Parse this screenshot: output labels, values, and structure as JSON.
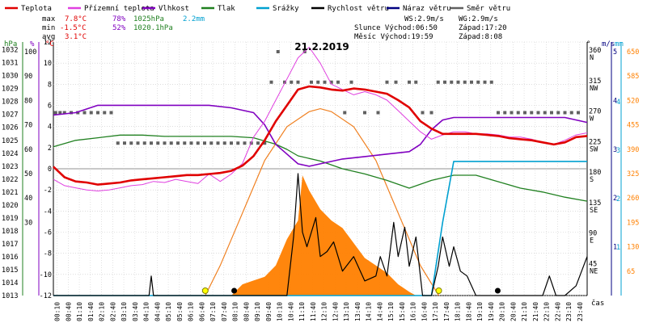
{
  "legend": [
    {
      "label": "Teplota",
      "color": "#e00000"
    },
    {
      "label": "Přízemní teplota",
      "color": "#e040e0"
    },
    {
      "label": "Vlhkost",
      "color": "#8000c0"
    },
    {
      "label": "Tlak",
      "color": "#208020"
    },
    {
      "label": "Srážky",
      "color": "#00a0d0"
    },
    {
      "label": "Rychlost větru",
      "color": "#000000"
    },
    {
      "label": "Náraz větru",
      "color": "#000080"
    },
    {
      "label": "Směr větru",
      "color": "#606060"
    }
  ],
  "stats": {
    "max_label": "max",
    "max_temp": "7.8°C",
    "max_hum": "78%",
    "max_press": "1025hPa",
    "rain": "2.2mm",
    "min_label": "min",
    "min_temp": "-1.5°C",
    "min_hum": "52%",
    "min_press": "1020.1hPa",
    "avg_label": "avg",
    "avg_temp": "3.1°C"
  },
  "wind_info": {
    "ws": "WS:2.9m/s",
    "wg": "WG:2.9m/s"
  },
  "sun_info": {
    "sunrise": "Slunce Východ:06:50",
    "sunset": "Západ:17:20"
  },
  "moon_info": {
    "rise": "Měsíc Východ:19:59",
    "set": "Západ:8:08"
  },
  "colors": {
    "temp": "#e00000",
    "ground": "#e040e0",
    "hum": "#8000c0",
    "press": "#208020",
    "rain": "#00a0d0",
    "wind": "#000000",
    "gust": "#000080",
    "dir": "#606060",
    "solar": "#ff8000",
    "sun_curve": "#f08020"
  },
  "chart_data": {
    "type": "line",
    "title": "21.2.2019",
    "xlabel": "čas",
    "x_ticks": [
      "00:10",
      "00:40",
      "01:10",
      "01:40",
      "02:10",
      "02:40",
      "03:10",
      "03:40",
      "04:10",
      "04:40",
      "05:10",
      "05:40",
      "06:10",
      "06:40",
      "07:10",
      "07:40",
      "08:10",
      "08:40",
      "09:10",
      "09:40",
      "10:10",
      "10:40",
      "11:10",
      "11:40",
      "12:10",
      "12:40",
      "13:10",
      "13:40",
      "14:10",
      "14:40",
      "15:10",
      "15:40",
      "16:10",
      "16:40",
      "17:10",
      "17:40",
      "18:10",
      "18:40",
      "19:10",
      "19:40",
      "20:10",
      "20:40",
      "21:10",
      "21:40",
      "22:10",
      "22:40",
      "23:10",
      "23:40"
    ],
    "axes": {
      "hpa": {
        "label": "hPa",
        "min": 1013,
        "max": 1032,
        "ticks": [
          "1032",
          "1031",
          "1030",
          "1029",
          "1028",
          "1027",
          "1026",
          "1025",
          "1024",
          "1023",
          "1022",
          "1021",
          "1020",
          "1019",
          "1018",
          "1017",
          "1016",
          "1015",
          "1014",
          "1013"
        ]
      },
      "pct": {
        "label": "%",
        "ticks": [
          "100",
          "90",
          "80",
          "70",
          "60",
          "50",
          "40",
          "30"
        ]
      },
      "temp": {
        "label": "°C",
        "min": -12,
        "max": 12,
        "ticks": [
          "12",
          "10",
          "8",
          "6",
          "4",
          "2",
          "0",
          "-2",
          "-4",
          "-6",
          "-8",
          "-10",
          "-12"
        ]
      },
      "deg": {
        "label": "°",
        "ticks": [
          "360",
          "315",
          "270",
          "225",
          "180",
          "135",
          "90",
          "45"
        ],
        "dir_labels": [
          "N",
          "NW",
          "W",
          "SW",
          "S",
          "SE",
          "E",
          "NE"
        ]
      },
      "ms": {
        "label": "m/s",
        "ticks": [
          "5",
          "4",
          "3",
          "2",
          "1"
        ]
      },
      "mm": {
        "label": "mm",
        "ticks": [
          "4",
          "3",
          "2",
          "1"
        ]
      },
      "solar": {
        "ticks": [
          "650",
          "585",
          "520",
          "455",
          "390",
          "325",
          "260",
          "195",
          "130",
          "65"
        ]
      }
    },
    "series": [
      {
        "name": "Teplota",
        "key": "temp",
        "axis": "temp",
        "x": [
          0,
          0.5,
          1,
          1.5,
          2,
          2.5,
          3,
          3.5,
          4,
          4.5,
          5,
          5.5,
          6,
          6.5,
          7,
          7.5,
          8,
          8.5,
          9,
          9.5,
          10,
          10.5,
          11,
          11.5,
          12,
          12.5,
          13,
          13.5,
          14,
          14.5,
          15,
          15.5,
          16,
          16.5,
          17,
          17.5,
          18,
          18.5,
          19,
          19.5,
          20,
          20.5,
          21,
          21.5,
          22,
          22.5,
          23,
          23.5,
          24
        ],
        "y": [
          0.2,
          -0.8,
          -1.2,
          -1.3,
          -1.5,
          -1.4,
          -1.3,
          -1.1,
          -1.0,
          -0.9,
          -0.8,
          -0.7,
          -0.6,
          -0.6,
          -0.5,
          -0.4,
          -0.2,
          0.3,
          1.2,
          2.7,
          4.5,
          6.0,
          7.5,
          7.8,
          7.7,
          7.5,
          7.4,
          7.6,
          7.5,
          7.3,
          7.1,
          6.5,
          5.8,
          4.5,
          3.8,
          3.3,
          3.3,
          3.3,
          3.3,
          3.2,
          3.1,
          2.9,
          2.8,
          2.7,
          2.5,
          2.3,
          2.5,
          3.0,
          3.1
        ]
      },
      {
        "name": "Přízemní teplota",
        "key": "ground",
        "axis": "temp",
        "x": [
          0,
          0.5,
          1,
          1.5,
          2,
          2.5,
          3,
          3.5,
          4,
          4.5,
          5,
          5.5,
          6,
          6.5,
          7,
          7.5,
          8,
          8.5,
          9,
          9.5,
          10,
          10.5,
          11,
          11.5,
          12,
          12.5,
          13,
          13.5,
          14,
          14.5,
          15,
          15.5,
          16,
          16.5,
          17,
          17.5,
          18,
          18.5,
          19,
          19.5,
          20,
          20.5,
          21,
          21.5,
          22,
          22.5,
          23,
          23.5,
          24
        ],
        "y": [
          -1.0,
          -1.6,
          -1.8,
          -2.0,
          -2.1,
          -2.0,
          -1.8,
          -1.6,
          -1.5,
          -1.2,
          -1.3,
          -1.0,
          -1.2,
          -1.4,
          -0.5,
          -1.2,
          -0.5,
          0.5,
          3.0,
          4.5,
          6.5,
          8.5,
          10.5,
          11.5,
          10.0,
          8.0,
          7.5,
          7.0,
          7.3,
          7.0,
          6.5,
          5.5,
          4.5,
          3.5,
          2.8,
          3.2,
          3.5,
          3.5,
          3.3,
          3.3,
          3.2,
          3.0,
          3.0,
          2.8,
          2.5,
          2.3,
          2.7,
          3.2,
          3.4
        ]
      },
      {
        "name": "Vlhkost",
        "key": "hum",
        "axis": "pct",
        "x": [
          0,
          1,
          2,
          3,
          4,
          5,
          6,
          7,
          8,
          9,
          9.5,
          10,
          10.5,
          11,
          11.5,
          12,
          13,
          14,
          15,
          16,
          16.5,
          17,
          17.5,
          18,
          19,
          20,
          21,
          22,
          23,
          24
        ],
        "y": [
          74,
          75,
          78,
          78,
          78,
          78,
          78,
          78,
          77,
          75,
          70,
          62,
          58,
          54,
          53,
          54,
          56,
          57,
          58,
          59,
          62,
          68,
          72,
          73,
          73,
          73,
          73,
          73,
          73,
          71
        ]
      },
      {
        "name": "Tlak",
        "key": "press",
        "axis": "hpa",
        "x": [
          0,
          1,
          2,
          3,
          4,
          5,
          6,
          7,
          8,
          9,
          10,
          10.5,
          11,
          12,
          13,
          14,
          15,
          16,
          17,
          18,
          19,
          20,
          21,
          22,
          23,
          24
        ],
        "y": [
          1024.5,
          1025,
          1025.2,
          1025.4,
          1025.4,
          1025.3,
          1025.3,
          1025.3,
          1025.3,
          1025.2,
          1024.7,
          1024.3,
          1023.8,
          1023.4,
          1022.8,
          1022.4,
          1021.9,
          1021.3,
          1021.9,
          1022.3,
          1022.3,
          1021.8,
          1021.3,
          1021.0,
          1020.6,
          1020.3
        ]
      },
      {
        "name": "Srážky",
        "key": "rain",
        "axis": "mm",
        "x": [
          0,
          17.0,
          17.5,
          18,
          18.5,
          24
        ],
        "y": [
          0,
          0,
          1.2,
          2.2,
          2.2,
          2.2
        ]
      },
      {
        "name": "Rychlost větru",
        "key": "wind",
        "axis": "ms",
        "x": [
          0,
          4.3,
          4.4,
          4.5,
          8.5,
          9.0,
          9.5,
          10.0,
          10.5,
          10.8,
          11.0,
          11.2,
          11.4,
          11.8,
          12.0,
          12.3,
          12.6,
          13.0,
          13.5,
          14.0,
          14.5,
          14.7,
          15.0,
          15.3,
          15.5,
          15.8,
          16.0,
          16.3,
          16.6,
          17.0,
          17.3,
          17.5,
          17.8,
          18.0,
          18.3,
          18.6,
          19.0,
          19.3,
          19.6,
          20.0,
          21.5,
          22.0,
          22.3,
          22.6,
          23.0,
          23.5,
          24
        ],
        "y": [
          0,
          0,
          0.4,
          0,
          0,
          0,
          0,
          0,
          0,
          1.2,
          2.5,
          1.3,
          1.0,
          1.6,
          0.8,
          0.9,
          1.1,
          0.5,
          0.8,
          0.3,
          0.4,
          0.8,
          0.4,
          1.5,
          0.8,
          1.4,
          0.6,
          1.2,
          0,
          0,
          0.6,
          1.2,
          0.6,
          1.0,
          0.5,
          0.4,
          0,
          0,
          0,
          0,
          0,
          0,
          0.4,
          0,
          0,
          0.2,
          0.8
        ]
      },
      {
        "name": "Solar",
        "key": "solar",
        "axis": "solar",
        "x": [
          8.0,
          8.5,
          9.0,
          9.5,
          10.0,
          10.5,
          11.0,
          11.2,
          11.5,
          12.0,
          12.5,
          13.0,
          13.5,
          14.0,
          14.5,
          15.0,
          15.5,
          16.0,
          16.3
        ],
        "y": [
          0,
          30,
          40,
          50,
          80,
          150,
          200,
          320,
          280,
          230,
          200,
          180,
          140,
          100,
          80,
          60,
          30,
          10,
          0
        ]
      },
      {
        "name": "Sun curve",
        "key": "sun_curve",
        "axis": "solar",
        "x": [
          6.83,
          7.5,
          8.5,
          9.5,
          10.5,
          11.5,
          12.0,
          12.5,
          13.5,
          14.5,
          15.5,
          16.5,
          17.33
        ],
        "y": [
          0,
          80,
          220,
          360,
          450,
          490,
          498,
          490,
          450,
          360,
          220,
          80,
          0
        ]
      }
    ],
    "wind_dir_points": {
      "x": [
        0.1,
        0.3,
        0.5,
        0.8,
        1.1,
        1.4,
        1.7,
        2.0,
        2.3,
        2.6,
        2.9,
        3.2,
        3.5,
        3.8,
        4.1,
        4.4,
        4.7,
        5.0,
        5.3,
        5.6,
        5.9,
        6.2,
        6.5,
        6.8,
        7.1,
        7.4,
        7.7,
        8.0,
        8.3,
        8.6,
        8.9,
        9.2,
        9.5,
        9.8,
        10.1,
        10.4,
        10.7,
        11.0,
        11.3,
        11.6,
        11.9,
        12.2,
        12.5,
        12.8,
        13.1,
        13.4,
        14.0,
        14.6,
        15.0,
        15.4,
        16.0,
        16.3,
        16.6,
        17.0,
        17.3,
        17.6,
        17.9,
        18.2,
        18.5,
        18.8,
        19.1,
        19.4,
        19.7,
        20.0,
        20.3,
        20.6,
        20.9,
        21.2,
        21.5,
        21.8,
        22.1,
        22.4,
        22.7,
        23.0,
        23.3,
        23.6
      ],
      "y": [
        270,
        270,
        270,
        270,
        270,
        270,
        270,
        270,
        270,
        270,
        225,
        225,
        225,
        225,
        225,
        225,
        225,
        225,
        225,
        225,
        225,
        225,
        225,
        225,
        225,
        225,
        225,
        225,
        225,
        225,
        225,
        225,
        225,
        315,
        360,
        315,
        315,
        315,
        360,
        315,
        315,
        315,
        315,
        315,
        270,
        315,
        270,
        270,
        315,
        315,
        315,
        315,
        270,
        270,
        315,
        315,
        315,
        315,
        315,
        315,
        315,
        315,
        315,
        270,
        270,
        270,
        270,
        270,
        270,
        270,
        270,
        270,
        270,
        270,
        270,
        270
      ]
    },
    "markers": {
      "sun_rise_x": 6.83,
      "sun_set_x": 17.33,
      "moon_set_x": 8.13,
      "moon_rise_x": 19.98
    },
    "zero_line": 0
  }
}
